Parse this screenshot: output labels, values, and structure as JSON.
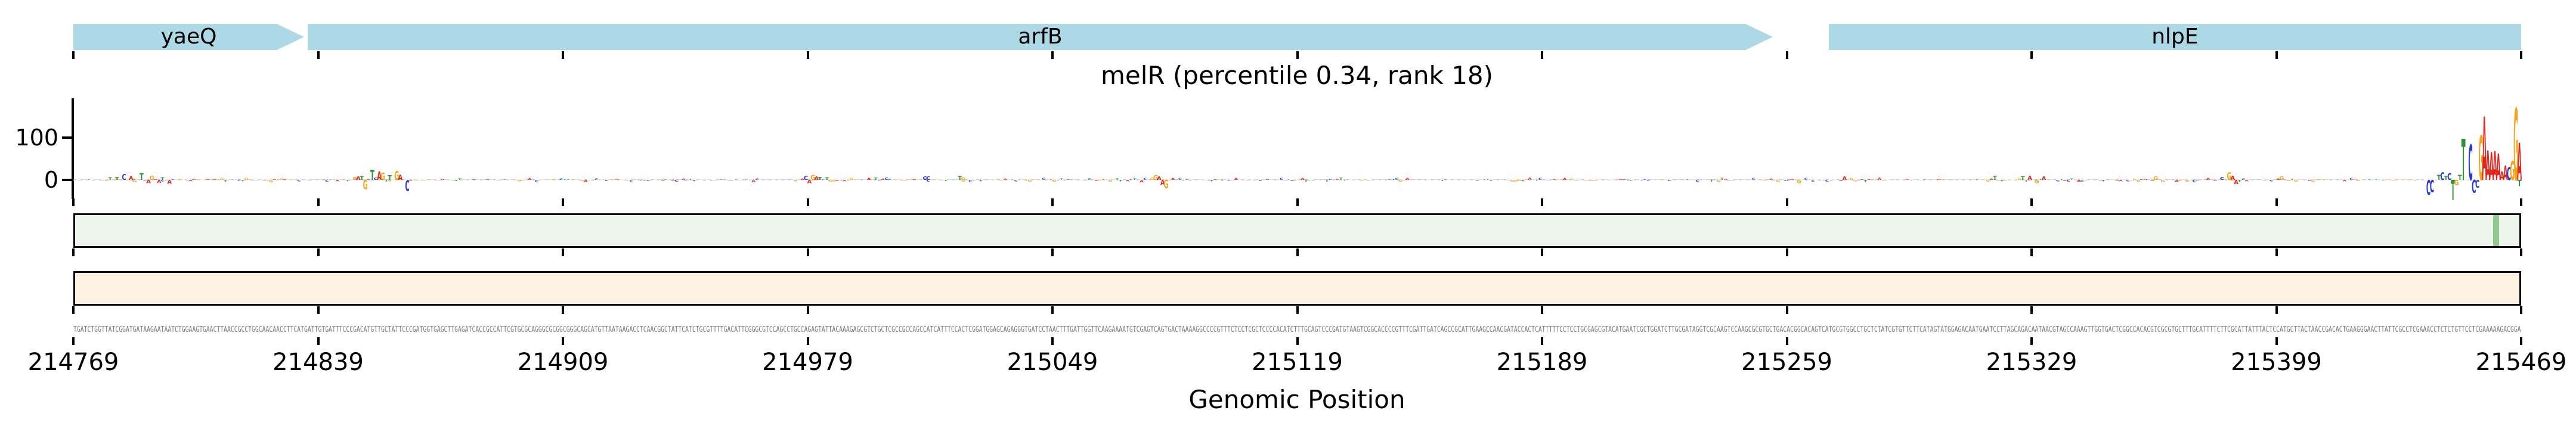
{
  "title": {
    "text": "melR (percentile 0.34, rank 18)"
  },
  "x_axis": {
    "label": "Genomic Position",
    "min": 214769,
    "max": 215469,
    "tick_values": [
      214769,
      214839,
      214909,
      214979,
      215049,
      215119,
      215189,
      215259,
      215329,
      215399,
      215469
    ]
  },
  "y_axis": {
    "tick_labels": [
      "0",
      "100"
    ],
    "tick_values": [
      0,
      100
    ]
  },
  "genes": [
    {
      "label": "yaeQ",
      "start": 214769,
      "end": 214835,
      "arrow": true
    },
    {
      "label": "arfB",
      "start": 214836,
      "end": 215255,
      "arrow": true
    },
    {
      "label": "nlpE",
      "start": 215271,
      "end": 215469,
      "arrow": false
    }
  ],
  "colors": {
    "gene_fill": "#add8e6",
    "A": "#e0271f",
    "C": "#2636d4",
    "G": "#f7a41d",
    "T": "#2a9134",
    "green_panel_fill": "#edf5ec",
    "green_marker": "#8fc98f",
    "orange_panel_fill": "#fdf2e4",
    "panel_border": "#000000",
    "sequence_text": "#7d7d7d",
    "baseline": "#d8d8d8"
  },
  "chart_data": {
    "type": "logo",
    "title": "melR (percentile 0.34, rank 18)",
    "xlabel": "Genomic Position",
    "xlim": [
      214769,
      215469
    ],
    "ylim": [
      -60,
      195
    ],
    "yticks": [
      0,
      100
    ],
    "peaks": [
      {
        "p": 214779,
        "b": "T",
        "v": 6
      },
      {
        "p": 214781,
        "b": "T",
        "v": 7
      },
      {
        "p": 214783,
        "b": "C",
        "v": 14
      },
      {
        "p": 214785,
        "b": "A",
        "v": 9
      },
      {
        "p": 214786,
        "b": "G",
        "v": -5
      },
      {
        "p": 214788,
        "b": "T",
        "v": 16
      },
      {
        "p": 214790,
        "b": "A",
        "v": -8
      },
      {
        "p": 214791,
        "b": "G",
        "v": 10
      },
      {
        "p": 214793,
        "b": "A",
        "v": -7
      },
      {
        "p": 214794,
        "b": "T",
        "v": 6
      },
      {
        "p": 214796,
        "b": "A",
        "v": -9
      },
      {
        "p": 214849,
        "b": "G",
        "v": 7
      },
      {
        "p": 214850,
        "b": "A",
        "v": 8
      },
      {
        "p": 214851,
        "b": "T",
        "v": 9
      },
      {
        "p": 214852,
        "b": "G",
        "v": -22
      },
      {
        "p": 214854,
        "b": "T",
        "v": 24
      },
      {
        "p": 214855,
        "b": "C",
        "v": 5
      },
      {
        "p": 214856,
        "b": "A",
        "v": 20
      },
      {
        "p": 214857,
        "b": "G",
        "v": 17
      },
      {
        "p": 214859,
        "b": "T",
        "v": 11
      },
      {
        "p": 214861,
        "b": "G",
        "v": 21
      },
      {
        "p": 214862,
        "b": "A",
        "v": 13
      },
      {
        "p": 214864,
        "b": "C",
        "v": -26
      },
      {
        "p": 214978,
        "b": "C",
        "v": 10
      },
      {
        "p": 214979,
        "b": "A",
        "v": -8
      },
      {
        "p": 214980,
        "b": "G",
        "v": 12
      },
      {
        "p": 214981,
        "b": "A",
        "v": 8
      },
      {
        "p": 214982,
        "b": "T",
        "v": 7
      },
      {
        "p": 214984,
        "b": "T",
        "v": 6
      },
      {
        "p": 215012,
        "b": "C",
        "v": 8
      },
      {
        "p": 215013,
        "b": "C",
        "v": 8
      },
      {
        "p": 215022,
        "b": "T",
        "v": 9
      },
      {
        "p": 215023,
        "b": "G",
        "v": 6
      },
      {
        "p": 215078,
        "b": "G",
        "v": 12
      },
      {
        "p": 215079,
        "b": "A",
        "v": 8
      },
      {
        "p": 215080,
        "b": "A",
        "v": -12
      },
      {
        "p": 215081,
        "b": "G",
        "v": -20
      },
      {
        "p": 215262,
        "b": "G",
        "v": -8
      },
      {
        "p": 215275,
        "b": "A",
        "v": 8
      },
      {
        "p": 215318,
        "b": "T",
        "v": 10
      },
      {
        "p": 215326,
        "b": "T",
        "v": 8
      },
      {
        "p": 215328,
        "b": "A",
        "v": 10
      },
      {
        "p": 215330,
        "b": "G",
        "v": -8
      },
      {
        "p": 215332,
        "b": "A",
        "v": 8
      },
      {
        "p": 215364,
        "b": "G",
        "v": 8
      },
      {
        "p": 215383,
        "b": "C",
        "v": 7
      },
      {
        "p": 215385,
        "b": "G",
        "v": 18
      },
      {
        "p": 215386,
        "b": "A",
        "v": 10
      },
      {
        "p": 215387,
        "b": "A",
        "v": -10
      },
      {
        "p": 215400,
        "b": "G",
        "v": 8
      },
      {
        "p": 215442,
        "b": "C",
        "v": -35
      },
      {
        "p": 215443,
        "b": "C",
        "v": -28
      },
      {
        "p": 215445,
        "b": "T",
        "v": 12
      },
      {
        "p": 215446,
        "b": "C",
        "v": 18
      },
      {
        "p": 215447,
        "b": "T",
        "v": 10
      },
      {
        "p": 215448,
        "b": "C",
        "v": 16
      },
      {
        "p": 215449,
        "b": "T",
        "v": -48
      },
      {
        "p": 215450,
        "b": "G",
        "v": -12
      },
      {
        "p": 215451,
        "b": "T",
        "v": 12
      },
      {
        "p": 215452,
        "b": "T",
        "v": 97
      },
      {
        "p": 215454,
        "b": "C",
        "v": 83
      },
      {
        "p": 215455,
        "b": "C",
        "v": -30
      },
      {
        "p": 215456,
        "b": "C",
        "v": -18
      },
      {
        "p": 215457,
        "b": "G",
        "v": 105
      },
      {
        "p": 215458,
        "b": "A",
        "v": 150
      },
      {
        "p": 215459,
        "b": "A",
        "v": 70
      },
      {
        "p": 215460,
        "b": "A",
        "v": 66
      },
      {
        "p": 215461,
        "b": "A",
        "v": 68
      },
      {
        "p": 215462,
        "b": "A",
        "v": 62
      },
      {
        "p": 215463,
        "b": "A",
        "v": 20
      },
      {
        "p": 215464,
        "b": "A",
        "v": 34
      },
      {
        "p": 215465,
        "b": "C",
        "v": 30
      },
      {
        "p": 215466,
        "b": "G",
        "v": 45
      },
      {
        "p": 215467,
        "b": "G",
        "v": 170
      },
      {
        "p": 215468,
        "b": "A",
        "v": 88
      },
      {
        "p": 215468,
        "b": "T",
        "v": -15
      }
    ],
    "noise": {
      "count": 700,
      "max_abs": 5
    }
  },
  "green_track": {
    "marker_position": 215461,
    "marker_width_bp": 1.5
  },
  "sequence": {
    "length": 700,
    "visible_start": "TGATCTGGTTATCGGATGATAAGAATAATCTGGAAGTGAACTTAACCGCCTGGCAACAACCTTCATGATTGTGATTTCCCGACATGTTGCTATTCCCGATGGTGAGCTTGAGATCACCGCCATTCGTGCGCAGGGCGCGGCGGGCAGCATGTTAATAAGACCTCAA",
    "visible_middle": "CGGCTATTCATCTGCGTTTTGACATTCGGGCGTCCAGCCTGCCAGAGTATTACAAAGAGCGTCTGCTCGCCGCCAGCCATCATTT",
    "visible_end": "CGAAACCTCTCTGTTCCTCGAAAAAGACGGA"
  }
}
